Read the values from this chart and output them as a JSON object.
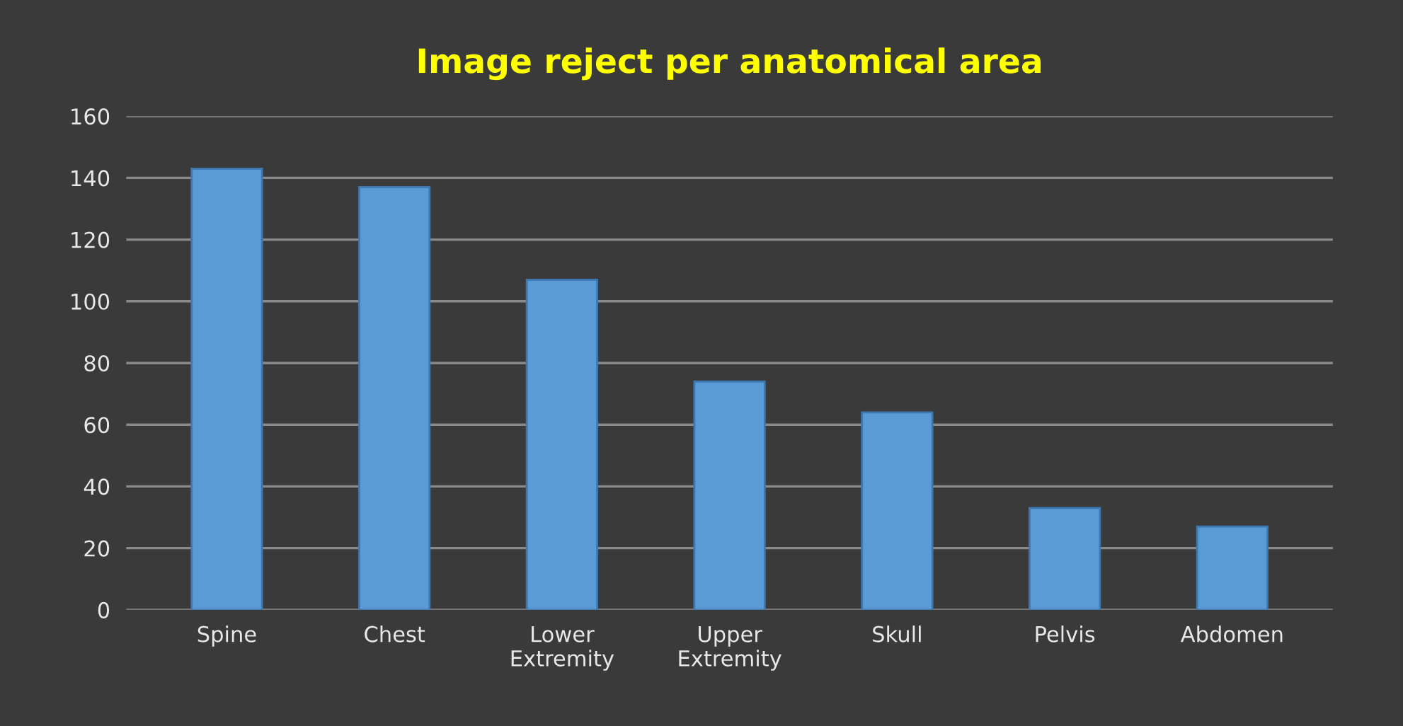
{
  "chart_data": {
    "type": "bar",
    "title": "Image reject per anatomical area",
    "categories": [
      "Spine",
      "Chest",
      "Lower\nExtremity",
      "Upper\nExtremity",
      "Skull",
      "Pelvis",
      "Abdomen"
    ],
    "values": [
      143,
      137,
      107,
      74,
      64,
      33,
      27
    ],
    "color": "#5b9bd5",
    "ylim": [
      0,
      160
    ],
    "yticks": [
      0,
      20,
      40,
      60,
      80,
      100,
      120,
      140,
      160
    ],
    "grid": "y"
  }
}
